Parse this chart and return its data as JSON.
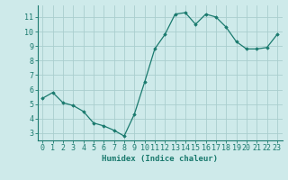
{
  "x": [
    0,
    1,
    2,
    3,
    4,
    5,
    6,
    7,
    8,
    9,
    10,
    11,
    12,
    13,
    14,
    15,
    16,
    17,
    18,
    19,
    20,
    21,
    22,
    23
  ],
  "y": [
    5.4,
    5.8,
    5.1,
    4.9,
    4.5,
    3.7,
    3.5,
    3.2,
    2.8,
    4.3,
    6.5,
    8.8,
    9.8,
    11.2,
    11.3,
    10.5,
    11.2,
    11.0,
    10.3,
    9.3,
    8.8,
    8.8,
    8.9,
    9.8
  ],
  "line_color": "#1a7a6e",
  "marker": "D",
  "markersize": 1.8,
  "linewidth": 0.9,
  "xlabel": "Humidex (Indice chaleur)",
  "xlim": [
    -0.5,
    23.5
  ],
  "ylim": [
    2.5,
    11.8
  ],
  "yticks": [
    3,
    4,
    5,
    6,
    7,
    8,
    9,
    10,
    11
  ],
  "xticks": [
    0,
    1,
    2,
    3,
    4,
    5,
    6,
    7,
    8,
    9,
    10,
    11,
    12,
    13,
    14,
    15,
    16,
    17,
    18,
    19,
    20,
    21,
    22,
    23
  ],
  "bg_color": "#ceeaea",
  "grid_color": "#aacece",
  "tick_color": "#1a7a6e",
  "xlabel_fontsize": 6.5,
  "tick_fontsize": 6.0
}
